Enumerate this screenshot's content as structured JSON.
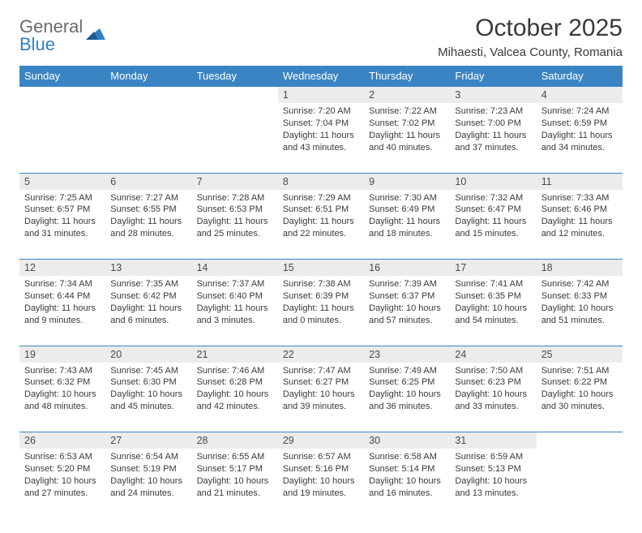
{
  "logo": {
    "line1": "General",
    "line2": "Blue"
  },
  "title": "October 2025",
  "subtitle": "Mihaesti, Valcea County, Romania",
  "colors": {
    "header_bg": "#3b84c4",
    "header_text": "#ffffff",
    "daynum_bg": "#ececec",
    "border": "#3b84c4",
    "text": "#3a3a3a",
    "logo_gray": "#6a6a6a",
    "logo_blue": "#2f7fc2"
  },
  "weekdays": [
    "Sunday",
    "Monday",
    "Tuesday",
    "Wednesday",
    "Thursday",
    "Friday",
    "Saturday"
  ],
  "weeks": [
    [
      null,
      null,
      null,
      {
        "n": "1",
        "sr": "7:20 AM",
        "ss": "7:04 PM",
        "dl": "11 hours and 43 minutes."
      },
      {
        "n": "2",
        "sr": "7:22 AM",
        "ss": "7:02 PM",
        "dl": "11 hours and 40 minutes."
      },
      {
        "n": "3",
        "sr": "7:23 AM",
        "ss": "7:00 PM",
        "dl": "11 hours and 37 minutes."
      },
      {
        "n": "4",
        "sr": "7:24 AM",
        "ss": "6:59 PM",
        "dl": "11 hours and 34 minutes."
      }
    ],
    [
      {
        "n": "5",
        "sr": "7:25 AM",
        "ss": "6:57 PM",
        "dl": "11 hours and 31 minutes."
      },
      {
        "n": "6",
        "sr": "7:27 AM",
        "ss": "6:55 PM",
        "dl": "11 hours and 28 minutes."
      },
      {
        "n": "7",
        "sr": "7:28 AM",
        "ss": "6:53 PM",
        "dl": "11 hours and 25 minutes."
      },
      {
        "n": "8",
        "sr": "7:29 AM",
        "ss": "6:51 PM",
        "dl": "11 hours and 22 minutes."
      },
      {
        "n": "9",
        "sr": "7:30 AM",
        "ss": "6:49 PM",
        "dl": "11 hours and 18 minutes."
      },
      {
        "n": "10",
        "sr": "7:32 AM",
        "ss": "6:47 PM",
        "dl": "11 hours and 15 minutes."
      },
      {
        "n": "11",
        "sr": "7:33 AM",
        "ss": "6:46 PM",
        "dl": "11 hours and 12 minutes."
      }
    ],
    [
      {
        "n": "12",
        "sr": "7:34 AM",
        "ss": "6:44 PM",
        "dl": "11 hours and 9 minutes."
      },
      {
        "n": "13",
        "sr": "7:35 AM",
        "ss": "6:42 PM",
        "dl": "11 hours and 6 minutes."
      },
      {
        "n": "14",
        "sr": "7:37 AM",
        "ss": "6:40 PM",
        "dl": "11 hours and 3 minutes."
      },
      {
        "n": "15",
        "sr": "7:38 AM",
        "ss": "6:39 PM",
        "dl": "11 hours and 0 minutes."
      },
      {
        "n": "16",
        "sr": "7:39 AM",
        "ss": "6:37 PM",
        "dl": "10 hours and 57 minutes."
      },
      {
        "n": "17",
        "sr": "7:41 AM",
        "ss": "6:35 PM",
        "dl": "10 hours and 54 minutes."
      },
      {
        "n": "18",
        "sr": "7:42 AM",
        "ss": "6:33 PM",
        "dl": "10 hours and 51 minutes."
      }
    ],
    [
      {
        "n": "19",
        "sr": "7:43 AM",
        "ss": "6:32 PM",
        "dl": "10 hours and 48 minutes."
      },
      {
        "n": "20",
        "sr": "7:45 AM",
        "ss": "6:30 PM",
        "dl": "10 hours and 45 minutes."
      },
      {
        "n": "21",
        "sr": "7:46 AM",
        "ss": "6:28 PM",
        "dl": "10 hours and 42 minutes."
      },
      {
        "n": "22",
        "sr": "7:47 AM",
        "ss": "6:27 PM",
        "dl": "10 hours and 39 minutes."
      },
      {
        "n": "23",
        "sr": "7:49 AM",
        "ss": "6:25 PM",
        "dl": "10 hours and 36 minutes."
      },
      {
        "n": "24",
        "sr": "7:50 AM",
        "ss": "6:23 PM",
        "dl": "10 hours and 33 minutes."
      },
      {
        "n": "25",
        "sr": "7:51 AM",
        "ss": "6:22 PM",
        "dl": "10 hours and 30 minutes."
      }
    ],
    [
      {
        "n": "26",
        "sr": "6:53 AM",
        "ss": "5:20 PM",
        "dl": "10 hours and 27 minutes."
      },
      {
        "n": "27",
        "sr": "6:54 AM",
        "ss": "5:19 PM",
        "dl": "10 hours and 24 minutes."
      },
      {
        "n": "28",
        "sr": "6:55 AM",
        "ss": "5:17 PM",
        "dl": "10 hours and 21 minutes."
      },
      {
        "n": "29",
        "sr": "6:57 AM",
        "ss": "5:16 PM",
        "dl": "10 hours and 19 minutes."
      },
      {
        "n": "30",
        "sr": "6:58 AM",
        "ss": "5:14 PM",
        "dl": "10 hours and 16 minutes."
      },
      {
        "n": "31",
        "sr": "6:59 AM",
        "ss": "5:13 PM",
        "dl": "10 hours and 13 minutes."
      },
      null
    ]
  ],
  "labels": {
    "sunrise": "Sunrise: ",
    "sunset": "Sunset: ",
    "daylight": "Daylight: "
  }
}
